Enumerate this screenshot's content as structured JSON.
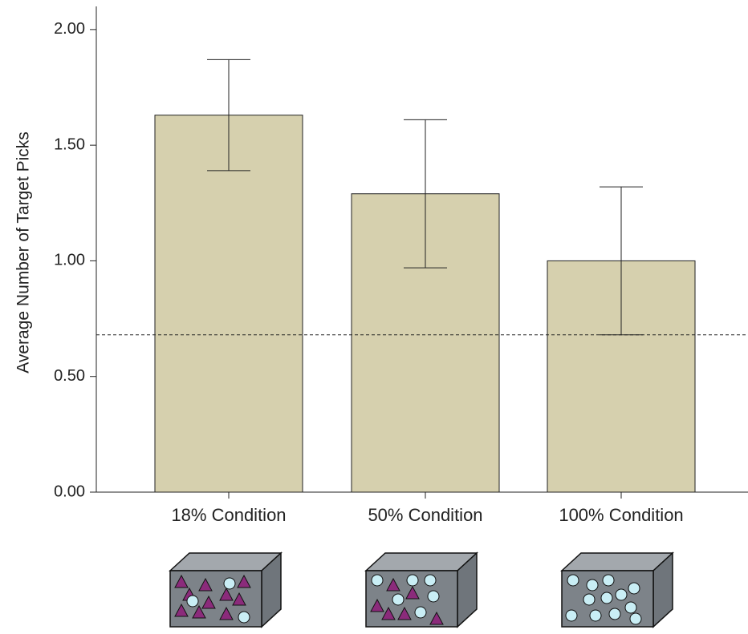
{
  "chart_data": {
    "type": "bar",
    "y_label": "Average Number of Target Picks",
    "categories": [
      "18% Condition",
      "50% Condition",
      "100% Condition"
    ],
    "values": [
      1.63,
      1.29,
      1.0
    ],
    "errors": [
      0.24,
      0.32,
      0.32
    ],
    "color": "#d6d0ae",
    "reference_line": 0.68,
    "ylim": [
      0,
      2.1
    ],
    "yticks": [
      {
        "value": 0,
        "label": "0.00"
      },
      {
        "value": 0.5,
        "label": "0.50"
      },
      {
        "value": 1,
        "label": "1.00"
      },
      {
        "value": 1.5,
        "label": "1.50"
      },
      {
        "value": 2,
        "label": "2.00"
      }
    ]
  }
}
